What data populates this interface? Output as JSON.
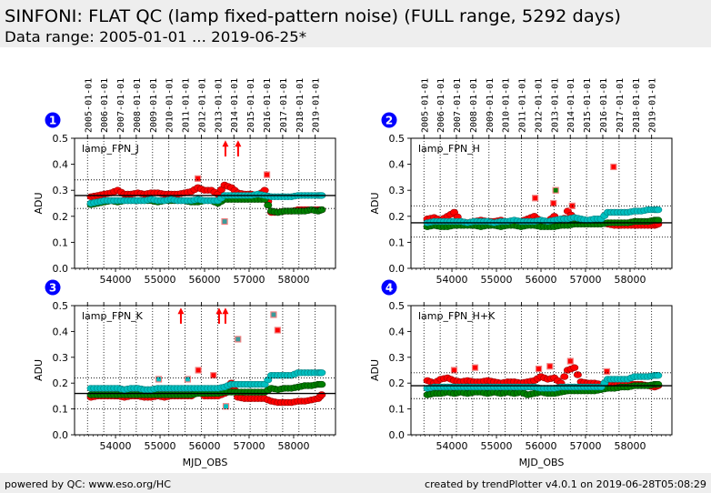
{
  "header": {
    "title": "SINFONI: FLAT QC (lamp fixed-pattern noise) (FULL range, 5292 days)",
    "subtitle": "Data range: 2005-01-01 ... 2019-06-25*"
  },
  "footer": {
    "left": "powered by QC: www.eso.org/HC",
    "right": "created by trendPlotter v4.0.1 on 2019-06-28T05:08:29"
  },
  "colors": {
    "badge": "#0000ff",
    "red": "#ff0000",
    "green": "#008000",
    "cyan": "#00bfbf",
    "outlier_edge": "#f08080",
    "band": "#eeeeee"
  },
  "shared": {
    "x": [
      53450,
      53600,
      53750,
      53900,
      54050,
      54200,
      54350,
      54500,
      54650,
      54800,
      54950,
      55100,
      55250,
      55400,
      55550,
      55700,
      55850,
      56000,
      56150,
      56300,
      56450,
      56600,
      56750,
      56900,
      57050,
      57200,
      57350,
      57500,
      57650,
      57800,
      57950,
      58100,
      58250,
      58400,
      58550,
      58630
    ],
    "date_ticks": {
      "mjd": [
        53371,
        53736,
        54101,
        54466,
        54832,
        55197,
        55562,
        55927,
        56293,
        56658,
        57023,
        57388,
        57754,
        58119,
        58484
      ],
      "labels": [
        "2005-01-01",
        "2006-01-01",
        "2007-01-01",
        "2008-01-01",
        "2009-01-01",
        "2010-01-01",
        "2011-01-01",
        "2012-01-01",
        "2013-01-01",
        "2014-01-01",
        "2015-01-01",
        "2016-01-01",
        "2017-01-01",
        "2018-01-01",
        "2019-01-01"
      ]
    },
    "xticks": [
      54000,
      55000,
      56000,
      57000,
      58000
    ],
    "xtick_labels": [
      "54000",
      "55000",
      "56000",
      "57000",
      "58000"
    ],
    "yticks": [
      0.0,
      0.1,
      0.2,
      0.3,
      0.4,
      0.5
    ],
    "ytick_labels": [
      "0.0",
      "0.1",
      "0.2",
      "0.3",
      "0.4",
      "0.5"
    ],
    "xlim": [
      53080,
      58940
    ],
    "ylim": [
      0,
      0.5
    ]
  },
  "chart_data": [
    {
      "type": "scatter",
      "panel_number": "1",
      "title": "lamp_FPN_J",
      "xlabel": "",
      "ylabel": "ADU",
      "show_date_labels": true,
      "grid": true,
      "xlim": [
        53080,
        58940
      ],
      "ylim": [
        0,
        0.5
      ],
      "reference_line": 0.28,
      "threshold_lines": [
        0.23,
        0.34
      ],
      "series": [
        {
          "name": "red",
          "color": "#ff0000",
          "edge": "#990000",
          "values": [
            0.275,
            0.28,
            0.285,
            0.29,
            0.3,
            0.285,
            0.285,
            0.29,
            0.285,
            0.29,
            0.29,
            0.285,
            0.285,
            0.285,
            0.29,
            0.295,
            0.31,
            0.3,
            0.3,
            0.285,
            0.32,
            0.31,
            0.29,
            0.285,
            0.285,
            0.28,
            0.3,
            0.215,
            0.215,
            0.22,
            0.22,
            0.225,
            0.225,
            0.225,
            0.225,
            0.225
          ]
        },
        {
          "name": "green",
          "color": "#008000",
          "edge": "#004000",
          "values": [
            0.245,
            0.25,
            0.255,
            0.26,
            0.255,
            0.26,
            0.26,
            0.26,
            0.26,
            0.26,
            0.255,
            0.26,
            0.26,
            0.26,
            0.26,
            0.255,
            0.255,
            0.26,
            0.26,
            0.25,
            0.265,
            0.265,
            0.265,
            0.265,
            0.265,
            0.265,
            0.265,
            0.22,
            0.215,
            0.22,
            0.22,
            0.22,
            0.22,
            0.225,
            0.22,
            0.225
          ]
        },
        {
          "name": "cyan",
          "color": "#00bfbf",
          "edge": "#008080",
          "values": [
            0.25,
            0.255,
            0.26,
            0.26,
            0.26,
            0.26,
            0.26,
            0.26,
            0.26,
            0.265,
            0.26,
            0.26,
            0.265,
            0.26,
            0.26,
            0.26,
            0.265,
            0.26,
            0.26,
            0.26,
            0.28,
            0.28,
            0.28,
            0.28,
            0.28,
            0.285,
            0.28,
            0.275,
            0.275,
            0.275,
            0.275,
            0.28,
            0.28,
            0.28,
            0.28,
            0.28
          ]
        }
      ],
      "outliers": [
        {
          "x": 55850,
          "y": 0.345,
          "fill": "#ff0000"
        },
        {
          "x": 57400,
          "y": 0.36,
          "fill": "#ff0000"
        },
        {
          "x": 56450,
          "y": 0.18,
          "fill": "#3a9c9c"
        }
      ],
      "off_scale_arrows": [
        56468,
        56753
      ]
    },
    {
      "type": "scatter",
      "panel_number": "2",
      "title": "lamp_FPN_H",
      "xlabel": "",
      "ylabel": "ADU",
      "show_date_labels": true,
      "grid": true,
      "xlim": [
        53080,
        58940
      ],
      "ylim": [
        0,
        0.5
      ],
      "reference_line": 0.175,
      "threshold_lines": [
        0.12,
        0.24
      ],
      "series": [
        {
          "name": "red",
          "color": "#ff0000",
          "edge": "#990000",
          "values": [
            0.19,
            0.195,
            0.185,
            0.2,
            0.215,
            0.18,
            0.175,
            0.18,
            0.185,
            0.18,
            0.18,
            0.185,
            0.175,
            0.18,
            0.18,
            0.19,
            0.2,
            0.18,
            0.18,
            0.2,
            0.165,
            0.22,
            0.19,
            0.18,
            0.18,
            0.175,
            0.175,
            0.17,
            0.165,
            0.165,
            0.165,
            0.165,
            0.165,
            0.165,
            0.165,
            0.17
          ]
        },
        {
          "name": "green",
          "color": "#008000",
          "edge": "#004000",
          "values": [
            0.16,
            0.165,
            0.16,
            0.16,
            0.165,
            0.165,
            0.165,
            0.165,
            0.16,
            0.165,
            0.165,
            0.16,
            0.165,
            0.165,
            0.16,
            0.165,
            0.165,
            0.16,
            0.16,
            0.16,
            0.165,
            0.165,
            0.17,
            0.17,
            0.17,
            0.17,
            0.17,
            0.175,
            0.175,
            0.175,
            0.175,
            0.18,
            0.18,
            0.18,
            0.185,
            0.185
          ]
        },
        {
          "name": "cyan",
          "color": "#00bfbf",
          "edge": "#008080",
          "values": [
            0.175,
            0.18,
            0.18,
            0.18,
            0.18,
            0.18,
            0.175,
            0.18,
            0.18,
            0.18,
            0.175,
            0.18,
            0.18,
            0.185,
            0.18,
            0.18,
            0.18,
            0.185,
            0.18,
            0.185,
            0.19,
            0.19,
            0.195,
            0.19,
            0.185,
            0.19,
            0.19,
            0.215,
            0.215,
            0.215,
            0.215,
            0.22,
            0.22,
            0.225,
            0.225,
            0.225
          ]
        }
      ],
      "outliers": [
        {
          "x": 55870,
          "y": 0.27,
          "fill": "#ff0000"
        },
        {
          "x": 56280,
          "y": 0.25,
          "fill": "#ff0000"
        },
        {
          "x": 56330,
          "y": 0.3,
          "fill": "#008000"
        },
        {
          "x": 56700,
          "y": 0.24,
          "fill": "#ff0000"
        },
        {
          "x": 57630,
          "y": 0.39,
          "fill": "#ff0000"
        }
      ],
      "off_scale_arrows": []
    },
    {
      "type": "scatter",
      "panel_number": "3",
      "title": "lamp_FPN_K",
      "xlabel": "MJD_OBS",
      "ylabel": "ADU",
      "show_date_labels": false,
      "grid": true,
      "xlim": [
        53080,
        58940
      ],
      "ylim": [
        0,
        0.5
      ],
      "reference_line": 0.16,
      "threshold_lines": [
        0.1,
        0.22
      ],
      "series": [
        {
          "name": "red",
          "color": "#ff0000",
          "edge": "#990000",
          "values": [
            0.145,
            0.15,
            0.15,
            0.15,
            0.15,
            0.145,
            0.15,
            0.15,
            0.145,
            0.145,
            0.15,
            0.145,
            0.15,
            0.15,
            0.15,
            0.15,
            0.17,
            0.15,
            0.15,
            0.15,
            0.16,
            0.2,
            0.145,
            0.14,
            0.14,
            0.14,
            0.14,
            0.13,
            0.125,
            0.125,
            0.125,
            0.13,
            0.13,
            0.135,
            0.14,
            0.155
          ]
        },
        {
          "name": "green",
          "color": "#008000",
          "edge": "#004000",
          "values": [
            0.155,
            0.155,
            0.155,
            0.155,
            0.155,
            0.155,
            0.155,
            0.155,
            0.155,
            0.155,
            0.155,
            0.155,
            0.155,
            0.155,
            0.155,
            0.155,
            0.16,
            0.16,
            0.16,
            0.16,
            0.165,
            0.165,
            0.165,
            0.165,
            0.165,
            0.165,
            0.165,
            0.18,
            0.175,
            0.18,
            0.18,
            0.185,
            0.19,
            0.19,
            0.195,
            0.195
          ]
        },
        {
          "name": "cyan",
          "color": "#00bfbf",
          "edge": "#008080",
          "values": [
            0.18,
            0.18,
            0.18,
            0.18,
            0.18,
            0.175,
            0.18,
            0.18,
            0.175,
            0.175,
            0.18,
            0.18,
            0.18,
            0.18,
            0.18,
            0.18,
            0.18,
            0.18,
            0.18,
            0.18,
            0.185,
            0.195,
            0.195,
            0.195,
            0.195,
            0.195,
            0.195,
            0.23,
            0.23,
            0.23,
            0.23,
            0.24,
            0.24,
            0.24,
            0.24,
            0.24
          ]
        }
      ],
      "outliers": [
        {
          "x": 54970,
          "y": 0.215,
          "fill": "#00bfbf"
        },
        {
          "x": 55620,
          "y": 0.215,
          "fill": "#00bfbf"
        },
        {
          "x": 55860,
          "y": 0.25,
          "fill": "#ff0000"
        },
        {
          "x": 56200,
          "y": 0.23,
          "fill": "#ff0000"
        },
        {
          "x": 56480,
          "y": 0.11,
          "fill": "#00bfbf"
        },
        {
          "x": 56750,
          "y": 0.37,
          "fill": "#3a9c9c"
        },
        {
          "x": 57550,
          "y": 0.465,
          "fill": "#3a9c9c"
        },
        {
          "x": 57640,
          "y": 0.405,
          "fill": "#ff0000"
        }
      ],
      "off_scale_arrows": [
        55468,
        56325,
        56468
      ]
    },
    {
      "type": "scatter",
      "panel_number": "4",
      "title": "lamp_FPN_H+K",
      "xlabel": "MJD_OBS",
      "ylabel": "ADU",
      "show_date_labels": false,
      "grid": true,
      "xlim": [
        53080,
        58940
      ],
      "ylim": [
        0,
        0.5
      ],
      "reference_line": 0.19,
      "threshold_lines": [
        0.14,
        0.24
      ],
      "series": [
        {
          "name": "red",
          "color": "#ff0000",
          "edge": "#990000",
          "values": [
            0.21,
            0.2,
            0.215,
            0.22,
            0.21,
            0.205,
            0.21,
            0.205,
            0.205,
            0.21,
            0.205,
            0.2,
            0.205,
            0.205,
            0.2,
            0.205,
            0.21,
            0.225,
            0.215,
            0.22,
            0.2,
            0.25,
            0.26,
            0.205,
            0.2,
            0.2,
            0.195,
            0.195,
            0.19,
            0.2,
            0.195,
            0.195,
            0.195,
            0.19,
            0.185,
            0.19
          ]
        },
        {
          "name": "green",
          "color": "#008000",
          "edge": "#004000",
          "values": [
            0.155,
            0.16,
            0.16,
            0.165,
            0.16,
            0.165,
            0.16,
            0.165,
            0.165,
            0.16,
            0.165,
            0.16,
            0.165,
            0.16,
            0.165,
            0.155,
            0.16,
            0.165,
            0.16,
            0.16,
            0.165,
            0.17,
            0.17,
            0.17,
            0.17,
            0.17,
            0.175,
            0.18,
            0.18,
            0.185,
            0.185,
            0.19,
            0.19,
            0.19,
            0.195,
            0.195
          ]
        },
        {
          "name": "cyan",
          "color": "#00bfbf",
          "edge": "#008080",
          "values": [
            0.18,
            0.185,
            0.185,
            0.185,
            0.185,
            0.185,
            0.185,
            0.185,
            0.185,
            0.185,
            0.185,
            0.185,
            0.185,
            0.185,
            0.185,
            0.185,
            0.185,
            0.18,
            0.18,
            0.18,
            0.185,
            0.185,
            0.185,
            0.185,
            0.185,
            0.185,
            0.185,
            0.215,
            0.215,
            0.215,
            0.215,
            0.225,
            0.225,
            0.225,
            0.23,
            0.23
          ]
        }
      ],
      "outliers": [
        {
          "x": 54050,
          "y": 0.25,
          "fill": "#ff0000"
        },
        {
          "x": 54520,
          "y": 0.26,
          "fill": "#ff0000"
        },
        {
          "x": 55950,
          "y": 0.255,
          "fill": "#ff0000"
        },
        {
          "x": 56200,
          "y": 0.265,
          "fill": "#ff0000"
        },
        {
          "x": 56660,
          "y": 0.285,
          "fill": "#ff0000"
        },
        {
          "x": 57480,
          "y": 0.245,
          "fill": "#ff0000"
        }
      ],
      "off_scale_arrows": []
    }
  ]
}
